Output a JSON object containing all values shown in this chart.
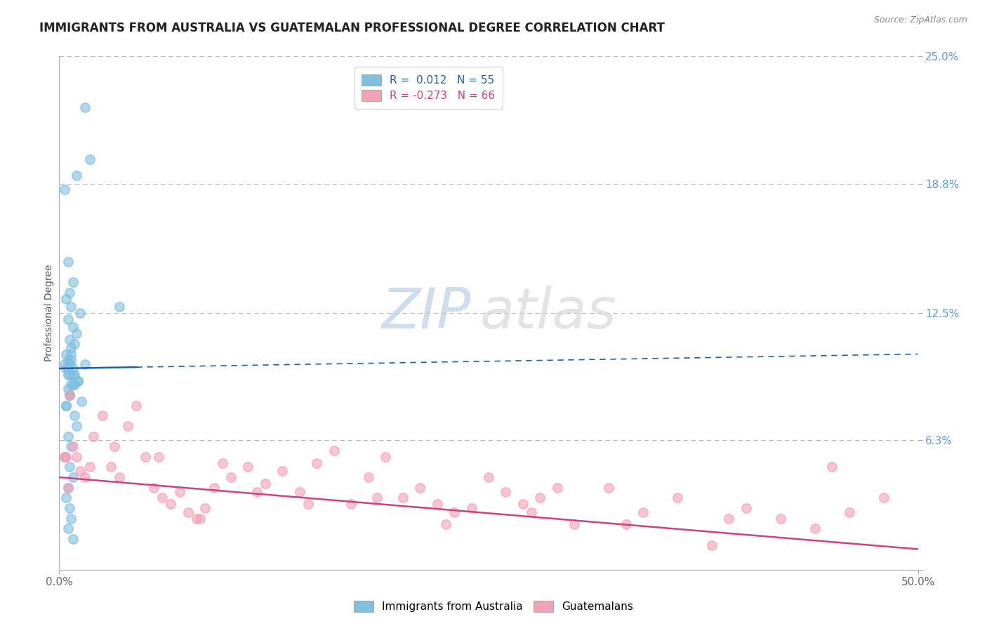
{
  "title": "IMMIGRANTS FROM AUSTRALIA VS GUATEMALAN PROFESSIONAL DEGREE CORRELATION CHART",
  "source_text": "Source: ZipAtlas.com",
  "ylabel": "Professional Degree",
  "xlim": [
    0.0,
    50.0
  ],
  "ylim": [
    0.0,
    25.0
  ],
  "yticks": [
    0.0,
    6.3,
    12.5,
    18.8,
    25.0
  ],
  "ytick_labels": [
    "",
    "6.3%",
    "12.5%",
    "18.8%",
    "25.0%"
  ],
  "xtick_labels": [
    "0.0%",
    "50.0%"
  ],
  "legend_r1": "R =  0.012",
  "legend_n1": "N = 55",
  "legend_r2": "R = -0.273",
  "legend_n2": "N = 66",
  "color_blue": "#7fbfdf",
  "color_pink": "#f4a0b5",
  "trend_color_blue": "#2060a0",
  "trend_color_pink": "#d04080",
  "background_color": "#ffffff",
  "grid_color": "#bbbbbb",
  "title_fontsize": 12,
  "axis_label_fontsize": 10,
  "tick_fontsize": 11,
  "tick_color_y": "#5b9bd5",
  "tick_color_x": "#666666",
  "aus_trend_x0": 0.0,
  "aus_trend_y0": 9.8,
  "aus_trend_x1": 50.0,
  "aus_trend_y1": 10.5,
  "aus_trend_solid_end": 4.5,
  "guat_trend_x0": 0.0,
  "guat_trend_y0": 4.5,
  "guat_trend_x1": 50.0,
  "guat_trend_y1": 1.0,
  "australia_x": [
    1.5,
    1.8,
    1.0,
    0.3,
    0.5,
    0.8,
    0.6,
    0.4,
    0.7,
    1.2,
    0.5,
    0.8,
    1.0,
    0.6,
    0.9,
    0.7,
    0.4,
    0.5,
    0.6,
    0.8,
    0.9,
    1.1,
    0.7,
    0.5,
    0.6,
    1.3,
    0.4,
    0.8,
    0.5,
    0.7,
    1.5,
    0.6,
    0.9,
    1.1,
    0.4,
    0.3,
    0.7,
    0.5,
    0.8,
    0.6,
    0.4,
    0.9,
    1.0,
    0.5,
    0.7,
    0.3,
    0.6,
    0.8,
    3.5,
    0.5,
    0.4,
    0.6,
    0.7,
    0.5,
    0.8
  ],
  "australia_y": [
    22.5,
    20.0,
    19.2,
    18.5,
    15.0,
    14.0,
    13.5,
    13.2,
    12.8,
    12.5,
    12.2,
    11.8,
    11.5,
    11.2,
    11.0,
    10.8,
    10.5,
    10.2,
    10.0,
    9.8,
    9.5,
    9.2,
    9.0,
    8.8,
    8.5,
    8.2,
    8.0,
    9.5,
    9.8,
    10.2,
    10.0,
    9.5,
    9.0,
    9.2,
    9.8,
    10.0,
    10.5,
    9.5,
    9.0,
    8.5,
    8.0,
    7.5,
    7.0,
    6.5,
    6.0,
    5.5,
    5.0,
    4.5,
    12.8,
    4.0,
    3.5,
    3.0,
    2.5,
    2.0,
    1.5
  ],
  "guatemalan_x": [
    0.3,
    0.5,
    0.8,
    1.0,
    1.2,
    1.5,
    1.8,
    2.0,
    2.5,
    3.0,
    3.5,
    4.0,
    4.5,
    5.0,
    5.5,
    6.0,
    6.5,
    7.0,
    7.5,
    8.0,
    8.5,
    9.0,
    9.5,
    10.0,
    11.0,
    12.0,
    13.0,
    14.0,
    15.0,
    16.0,
    17.0,
    18.0,
    19.0,
    20.0,
    21.0,
    22.0,
    23.0,
    24.0,
    25.0,
    26.0,
    27.0,
    28.0,
    29.0,
    30.0,
    32.0,
    34.0,
    36.0,
    38.0,
    40.0,
    42.0,
    44.0,
    46.0,
    48.0,
    3.2,
    5.8,
    8.2,
    11.5,
    14.5,
    18.5,
    22.5,
    27.5,
    33.0,
    39.0,
    45.0,
    0.4,
    0.6
  ],
  "guatemalan_y": [
    5.5,
    4.0,
    6.0,
    5.5,
    4.8,
    4.5,
    5.0,
    6.5,
    7.5,
    5.0,
    4.5,
    7.0,
    8.0,
    5.5,
    4.0,
    3.5,
    3.2,
    3.8,
    2.8,
    2.5,
    3.0,
    4.0,
    5.2,
    4.5,
    5.0,
    4.2,
    4.8,
    3.8,
    5.2,
    5.8,
    3.2,
    4.5,
    5.5,
    3.5,
    4.0,
    3.2,
    2.8,
    3.0,
    4.5,
    3.8,
    3.2,
    3.5,
    4.0,
    2.2,
    4.0,
    2.8,
    3.5,
    1.2,
    3.0,
    2.5,
    2.0,
    2.8,
    3.5,
    6.0,
    5.5,
    2.5,
    3.8,
    3.2,
    3.5,
    2.2,
    2.8,
    2.2,
    2.5,
    5.0,
    5.5,
    8.5
  ]
}
